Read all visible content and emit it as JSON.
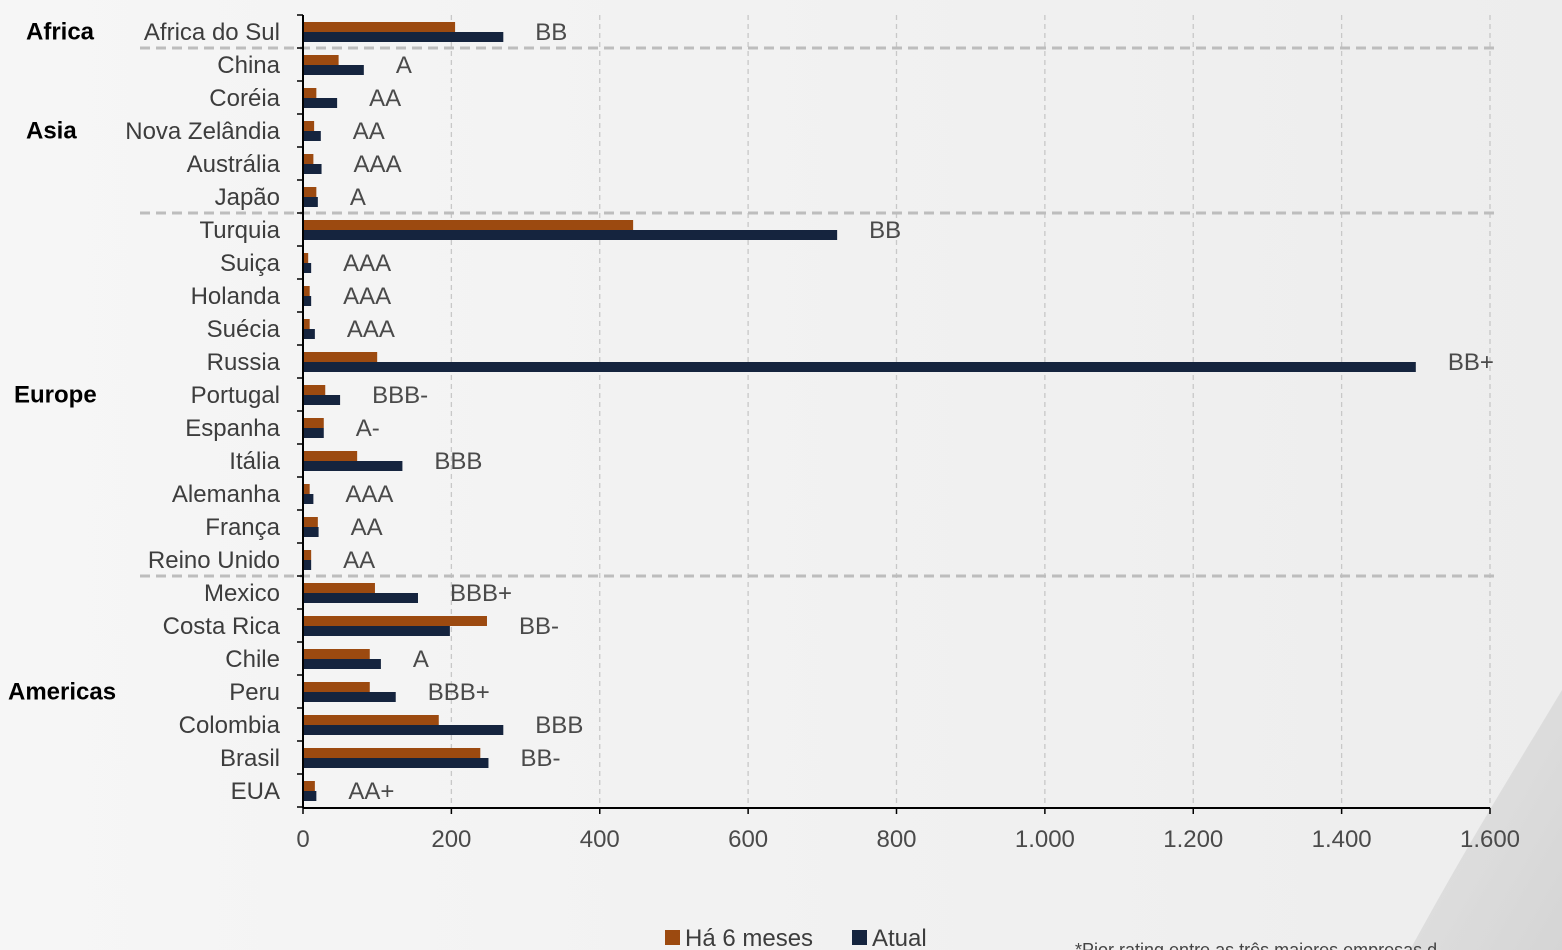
{
  "chart_data": {
    "type": "bar",
    "orientation": "horizontal",
    "categories": [
      "Africa do Sul",
      "China",
      "Coréia",
      "Nova Zelândia",
      "Austrália",
      "Japão",
      "Turquia",
      "Suiça",
      "Holanda",
      "Suécia",
      "Russia",
      "Portugal",
      "Espanha",
      "Itália",
      "Alemanha",
      "França",
      "Reino Unido",
      "Mexico",
      "Costa Rica",
      "Chile",
      "Peru",
      "Colombia",
      "Brasil",
      "EUA"
    ],
    "series": [
      {
        "name": "Há 6 meses",
        "color": "#9c4a10",
        "values": [
          205,
          48,
          18,
          15,
          14,
          18,
          445,
          7,
          9,
          9,
          100,
          30,
          28,
          73,
          9,
          20,
          11,
          97,
          248,
          90,
          90,
          183,
          239,
          16
        ]
      },
      {
        "name": "Atual",
        "color": "#15243e",
        "values": [
          270,
          82,
          46,
          24,
          25,
          20,
          720,
          11,
          11,
          16,
          1500,
          50,
          28,
          134,
          14,
          21,
          11,
          155,
          198,
          105,
          125,
          270,
          250,
          18
        ]
      }
    ],
    "ratings": [
      "BB",
      "A",
      "AA",
      "AA",
      "AAA",
      "A",
      "BB",
      "AAA",
      "AAA",
      "AAA",
      "BB+",
      "BBB-",
      "A-",
      "BBB",
      "AAA",
      "AA",
      "AA",
      "BBB+",
      "BB-",
      "A",
      "BBB+",
      "BBB",
      "BB-",
      "AA+"
    ],
    "regions": [
      {
        "name": "Africa",
        "from": "Africa do Sul",
        "to": "Africa do Sul"
      },
      {
        "name": "Asia",
        "from": "China",
        "to": "Japão"
      },
      {
        "name": "Europe",
        "from": "Turquia",
        "to": "Reino Unido"
      },
      {
        "name": "Americas",
        "from": "Mexico",
        "to": "EUA"
      }
    ],
    "xlim": [
      0,
      1600
    ],
    "xticks": [
      "0",
      "200",
      "400",
      "600",
      "800",
      "1.000",
      "1.200",
      "1.400",
      "1.600"
    ],
    "legend_position": "bottom-center",
    "grid": "vertical dashed",
    "footnote": "*Pior rating entre as três maiores empresas d"
  }
}
